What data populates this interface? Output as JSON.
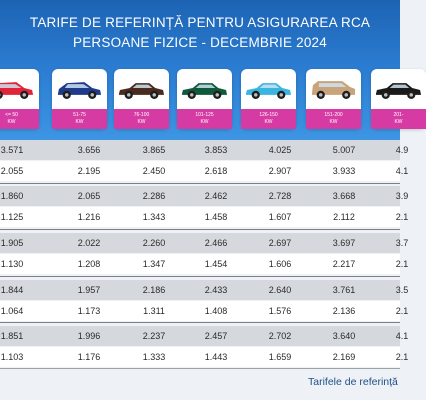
{
  "title": {
    "line1": "TARIFE DE REFERINȚĂ PENTRU ASIGURAREA RCA",
    "line2": "PERSOANE FIZICE - DECEMBRIE 2024"
  },
  "categories": [
    {
      "label": "<= 50",
      "unit": "KW",
      "car_color": "#e0243a",
      "car_type": "hatchback"
    },
    {
      "label": "51-75",
      "unit": "KW",
      "car_color": "#1f3a8a",
      "car_type": "hatchback"
    },
    {
      "label": "76-100",
      "unit": "KW",
      "car_color": "#4a2a1c",
      "car_type": "sedan"
    },
    {
      "label": "101-125",
      "unit": "KW",
      "car_color": "#0f5a3a",
      "car_type": "sedan"
    },
    {
      "label": "126-150",
      "unit": "KW",
      "car_color": "#3ab4e0",
      "car_type": "sedan"
    },
    {
      "label": "151-200",
      "unit": "KW",
      "car_color": "#c9a37c",
      "car_type": "suv"
    },
    {
      "label": "201-",
      "unit": "KW",
      "car_color": "#1a1a1a",
      "car_type": "sedan"
    }
  ],
  "rows": [
    {
      "values": [
        "3.571",
        "3.656",
        "3.865",
        "3.853",
        "4.025",
        "5.007",
        "4.9"
      ]
    },
    {
      "values": [
        "2.055",
        "2.195",
        "2.450",
        "2.618",
        "2.907",
        "3.933",
        "4.1"
      ]
    },
    {
      "values": [
        "1.860",
        "2.065",
        "2.286",
        "2.462",
        "2.728",
        "3.668",
        "3.9"
      ]
    },
    {
      "values": [
        "1.125",
        "1.216",
        "1.343",
        "1.458",
        "1.607",
        "2.112",
        "2.1"
      ]
    },
    {
      "values": [
        "1.905",
        "2.022",
        "2.260",
        "2.466",
        "2.697",
        "3.697",
        "3.7"
      ]
    },
    {
      "values": [
        "1.130",
        "1.208",
        "1.347",
        "1.454",
        "1.606",
        "2.217",
        "2.1"
      ]
    },
    {
      "values": [
        "1.844",
        "1.957",
        "2.186",
        "2.433",
        "2.640",
        "3.761",
        "3.5"
      ]
    },
    {
      "values": [
        "1.064",
        "1.173",
        "1.311",
        "1.408",
        "1.576",
        "2.136",
        "2.1"
      ]
    },
    {
      "values": [
        "1.851",
        "1.996",
        "2.237",
        "2.457",
        "2.702",
        "3.640",
        "4.1"
      ]
    },
    {
      "values": [
        "1.103",
        "1.176",
        "1.333",
        "1.443",
        "1.659",
        "2.169",
        "2.1"
      ]
    }
  ],
  "footer": {
    "note": "Tarifele de referință"
  },
  "colors": {
    "header_blue": "#2a7bd0",
    "kw_band_magenta": "#d63aa3",
    "row_shade": "#d5d9de",
    "footer_text": "#1e4f8a"
  }
}
